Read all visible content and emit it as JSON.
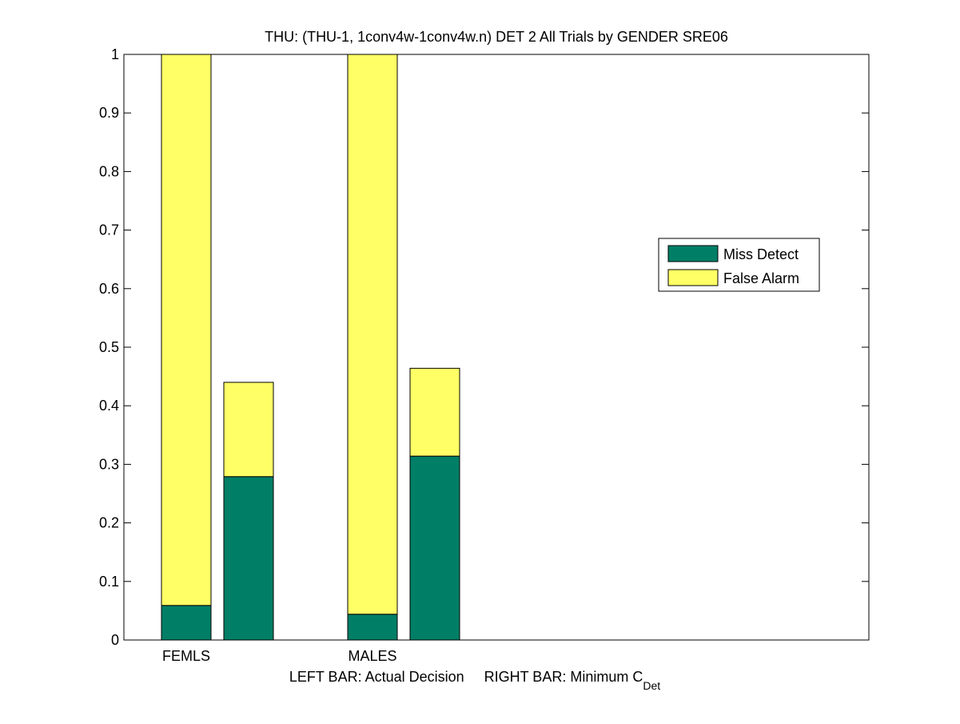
{
  "chart_data": {
    "type": "stacked-bar",
    "title": "THU: (THU-1, 1conv4w-1conv4w.n) DET 2 All Trials by GENDER SRE06",
    "xlabel": "LEFT BAR: Actual Decision     RIGHT BAR: Minimum C",
    "xlabel_subscript": "Det",
    "categories": [
      "FEMLS",
      null,
      "MALES",
      null
    ],
    "series": [
      {
        "name": "Miss Detect",
        "color": "#007f66",
        "values": [
          0.059,
          0.279,
          0.044,
          0.314
        ]
      },
      {
        "name": "False Alarm",
        "color": "#ffff66",
        "values": [
          0.941,
          0.161,
          0.956,
          0.15
        ]
      }
    ],
    "ylim": [
      0,
      1
    ],
    "yticks": [
      0,
      0.1,
      0.2,
      0.3,
      0.4,
      0.5,
      0.6,
      0.7,
      0.8,
      0.9,
      1
    ],
    "legend": "right"
  }
}
